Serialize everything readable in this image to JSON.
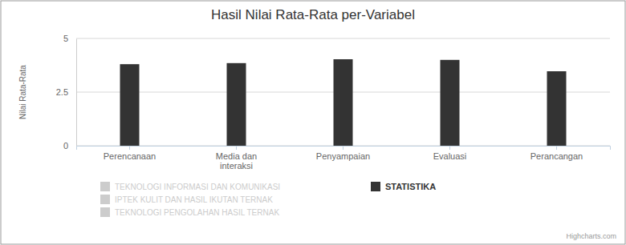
{
  "chart_data": {
    "type": "bar",
    "title": "Hasil Nilai Rata-Rata per-Variabel",
    "y_label": "Nilai Rata-Rata",
    "categories": [
      "Perencanaan",
      "Media dan interaksi",
      "Penyampaian",
      "Evaluasi",
      "Perancangan"
    ],
    "series": [
      {
        "name": "TEKNOLOGI INFORMASI DAN KOMUNIKASI",
        "color": "#cccccc",
        "values": [
          null,
          null,
          null,
          null,
          null
        ]
      },
      {
        "name": "IPTEK KULIT DAN HASIL IKUTAN TERNAK",
        "color": "#cccccc",
        "values": [
          null,
          null,
          null,
          null,
          null
        ]
      },
      {
        "name": "TEKNOLOGI PENGOLAHAN HASIL TERNAK",
        "color": "#cccccc",
        "values": [
          null,
          null,
          null,
          null,
          null
        ]
      },
      {
        "name": "STATISTIKA",
        "color": "#333333",
        "values": [
          3.8,
          3.85,
          4.03,
          4.0,
          3.47
        ]
      }
    ],
    "ylim": [
      0,
      5
    ],
    "yticks": [
      0,
      2.5,
      5
    ],
    "grid": true,
    "credits": "Highcharts.com"
  }
}
